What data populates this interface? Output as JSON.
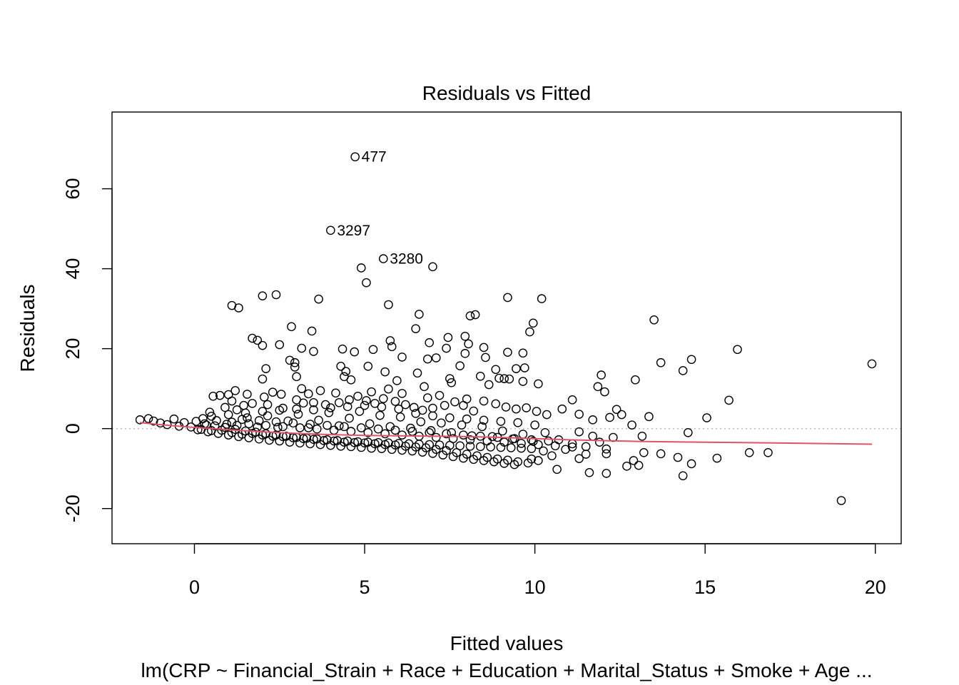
{
  "chart_data": {
    "type": "scatter",
    "title": "Residuals vs Fitted",
    "xlabel": "Fitted values",
    "ylabel": "Residuals",
    "subtitle": "lm(CRP ~ Financial_Strain + Race + Education + Marital_Status + Smoke + Age ...",
    "xlim": [
      -2.42,
      20.76
    ],
    "ylim": [
      -28.8,
      79.2
    ],
    "x_ticks": [
      0,
      5,
      10,
      15,
      20
    ],
    "y_ticks": [
      -20,
      0,
      20,
      40,
      60
    ],
    "reference_line": {
      "y": 0,
      "style": "dotted",
      "color": "#bebebe"
    },
    "smooth_color": "#df536b",
    "point_stroke": "#000000",
    "smooth": [
      [
        -1.6,
        1.5
      ],
      [
        -1.0,
        1.0
      ],
      [
        0,
        0.3
      ],
      [
        1,
        -0.3
      ],
      [
        2,
        -0.8
      ],
      [
        3,
        -1.2
      ],
      [
        4,
        -1.5
      ],
      [
        5,
        -1.7
      ],
      [
        6,
        -1.8
      ],
      [
        7,
        -1.9
      ],
      [
        8,
        -2.0
      ],
      [
        9,
        -2.2
      ],
      [
        10,
        -2.5
      ],
      [
        11,
        -2.8
      ],
      [
        12,
        -3.0
      ],
      [
        13,
        -3.2
      ],
      [
        15,
        -3.4
      ],
      [
        17,
        -3.6
      ],
      [
        19.9,
        -3.9
      ]
    ],
    "labeled_points": [
      {
        "x": 4.72,
        "y": 68.0,
        "label": "477"
      },
      {
        "x": 4.0,
        "y": 49.6,
        "label": "3297"
      },
      {
        "x": 5.55,
        "y": 42.5,
        "label": "3280"
      }
    ],
    "points": [
      [
        4.9,
        40.2
      ],
      [
        7.0,
        40.5
      ],
      [
        5.05,
        36.5
      ],
      [
        2.4,
        33.5
      ],
      [
        2.0,
        33.2
      ],
      [
        3.65,
        32.4
      ],
      [
        9.2,
        32.8
      ],
      [
        10.2,
        32.5
      ],
      [
        1.1,
        30.8
      ],
      [
        1.3,
        30.2
      ],
      [
        5.7,
        31.0
      ],
      [
        6.6,
        28.6
      ],
      [
        8.1,
        28.2
      ],
      [
        8.25,
        28.5
      ],
      [
        13.5,
        27.2
      ],
      [
        9.95,
        26.4
      ],
      [
        2.85,
        25.5
      ],
      [
        3.45,
        24.4
      ],
      [
        6.5,
        25.0
      ],
      [
        9.85,
        24.2
      ],
      [
        1.7,
        22.6
      ],
      [
        1.85,
        22.1
      ],
      [
        5.75,
        22.0
      ],
      [
        7.45,
        22.8
      ],
      [
        7.95,
        23.1
      ],
      [
        2.0,
        20.8
      ],
      [
        2.5,
        21.0
      ],
      [
        3.15,
        20.1
      ],
      [
        4.35,
        19.9
      ],
      [
        4.7,
        19.2
      ],
      [
        5.25,
        19.8
      ],
      [
        5.8,
        20.5
      ],
      [
        6.9,
        21.5
      ],
      [
        7.4,
        20.1
      ],
      [
        8.05,
        21.2
      ],
      [
        8.5,
        20.3
      ],
      [
        15.95,
        19.8
      ],
      [
        3.5,
        19.3
      ],
      [
        6.1,
        17.9
      ],
      [
        6.85,
        17.4
      ],
      [
        7.1,
        17.7
      ],
      [
        7.95,
        18.8
      ],
      [
        8.55,
        17.8
      ],
      [
        9.2,
        19.1
      ],
      [
        9.65,
        18.9
      ],
      [
        2.8,
        17.1
      ],
      [
        2.95,
        16.5
      ],
      [
        13.7,
        16.5
      ],
      [
        14.6,
        17.3
      ],
      [
        19.9,
        16.2
      ],
      [
        2.1,
        15.0
      ],
      [
        2.95,
        15.4
      ],
      [
        4.3,
        15.6
      ],
      [
        5.1,
        15.6
      ],
      [
        7.8,
        15.7
      ],
      [
        9.45,
        15.0
      ],
      [
        9.7,
        15.2
      ],
      [
        14.35,
        14.5
      ],
      [
        4.45,
        14.3
      ],
      [
        5.6,
        14.2
      ],
      [
        6.55,
        13.9
      ],
      [
        8.85,
        14.8
      ],
      [
        4.4,
        13.0
      ],
      [
        7.5,
        12.5
      ],
      [
        8.4,
        13.1
      ],
      [
        9.1,
        12.5
      ],
      [
        11.95,
        13.4
      ],
      [
        2.0,
        12.4
      ],
      [
        3.0,
        13.0
      ],
      [
        4.6,
        12.2
      ],
      [
        5.95,
        12.0
      ],
      [
        8.95,
        12.6
      ],
      [
        9.25,
        12.4
      ],
      [
        10.1,
        11.2
      ],
      [
        12.95,
        12.2
      ],
      [
        11.85,
        10.5
      ],
      [
        12.05,
        9.2
      ],
      [
        3.15,
        10.0
      ],
      [
        3.7,
        9.5
      ],
      [
        6.75,
        10.5
      ],
      [
        7.55,
        11.5
      ],
      [
        8.65,
        11.0
      ],
      [
        9.65,
        11.8
      ],
      [
        15.7,
        7.1
      ],
      [
        11.1,
        7.2
      ],
      [
        12.4,
        4.8
      ],
      [
        12.55,
        3.5
      ],
      [
        13.35,
        3.0
      ],
      [
        15.05,
        2.7
      ],
      [
        14.5,
        -1.0
      ],
      [
        12.85,
        0.9
      ],
      [
        13.15,
        -1.9
      ],
      [
        19.0,
        -18.0
      ],
      [
        14.35,
        -11.8
      ],
      [
        14.6,
        -8.8
      ],
      [
        14.2,
        -7.2
      ],
      [
        15.35,
        -7.4
      ],
      [
        16.3,
        -6.0
      ],
      [
        16.85,
        -6.0
      ],
      [
        12.1,
        -11.2
      ],
      [
        11.6,
        -11.0
      ],
      [
        10.65,
        -10.2
      ],
      [
        12.7,
        -9.4
      ],
      [
        13.05,
        -9.2
      ],
      [
        13.2,
        -6.0
      ],
      [
        12.9,
        -8.0
      ],
      [
        13.7,
        -6.3
      ],
      [
        12.1,
        -6.3
      ],
      [
        11.5,
        -6.4
      ],
      [
        9.9,
        -7.6
      ],
      [
        10.25,
        -5.6
      ],
      [
        11.3,
        -7.5
      ],
      [
        0.25,
        2.5
      ],
      [
        0.45,
        4.1
      ],
      [
        0.9,
        5.3
      ],
      [
        1.1,
        6.9
      ],
      [
        1.25,
        4.7
      ],
      [
        1.45,
        5.8
      ],
      [
        0.55,
        8.1
      ],
      [
        0.75,
        8.3
      ],
      [
        1.0,
        8.5
      ],
      [
        1.2,
        9.5
      ],
      [
        1.55,
        8.6
      ],
      [
        2.05,
        7.9
      ],
      [
        2.55,
        8.6
      ],
      [
        1.7,
        6.3
      ],
      [
        2.15,
        6.0
      ],
      [
        2.6,
        5.1
      ],
      [
        3.0,
        7.2
      ],
      [
        3.2,
        6.4
      ],
      [
        3.5,
        6.5
      ],
      [
        3.85,
        6.0
      ],
      [
        4.25,
        6.5
      ],
      [
        4.55,
        7.2
      ],
      [
        4.8,
        8.1
      ],
      [
        5.05,
        7.0
      ],
      [
        5.3,
        6.3
      ],
      [
        5.55,
        7.5
      ],
      [
        5.9,
        6.8
      ],
      [
        6.2,
        6.0
      ],
      [
        6.45,
        5.3
      ],
      [
        6.7,
        4.6
      ],
      [
        7.0,
        5.1
      ],
      [
        7.35,
        5.8
      ],
      [
        7.65,
        6.7
      ],
      [
        7.9,
        5.8
      ],
      [
        8.2,
        4.4
      ],
      [
        8.5,
        6.9
      ],
      [
        8.85,
        6.2
      ],
      [
        9.15,
        5.4
      ],
      [
        9.45,
        4.9
      ],
      [
        9.75,
        5.2
      ],
      [
        10.05,
        4.3
      ],
      [
        10.35,
        3.5
      ],
      [
        10.8,
        4.9
      ],
      [
        11.3,
        3.6
      ],
      [
        11.7,
        2.2
      ],
      [
        12.2,
        2.8
      ],
      [
        2.3,
        9.1
      ],
      [
        3.35,
        8.7
      ],
      [
        4.15,
        8.9
      ],
      [
        5.2,
        9.2
      ],
      [
        5.7,
        9.9
      ],
      [
        6.1,
        8.8
      ],
      [
        6.85,
        7.7
      ],
      [
        7.2,
        8.3
      ],
      [
        8.0,
        7.4
      ],
      [
        -1.6,
        2.2
      ],
      [
        -1.35,
        2.5
      ],
      [
        -1.2,
        1.9
      ],
      [
        -1.0,
        1.4
      ],
      [
        -0.8,
        1.0
      ],
      [
        -0.6,
        2.4
      ],
      [
        -0.45,
        0.6
      ],
      [
        -0.3,
        1.5
      ],
      [
        -0.1,
        0.4
      ],
      [
        0.05,
        1.8
      ],
      [
        0.2,
        -0.2
      ],
      [
        0.35,
        0.9
      ],
      [
        0.5,
        -0.5
      ],
      [
        0.65,
        2.0
      ],
      [
        0.8,
        -0.4
      ],
      [
        0.95,
        1.1
      ],
      [
        1.1,
        -1.0
      ],
      [
        1.25,
        0.8
      ],
      [
        1.4,
        -1.4
      ],
      [
        1.55,
        2.7
      ],
      [
        1.7,
        -1.2
      ],
      [
        1.85,
        0.4
      ],
      [
        2.0,
        -1.6
      ],
      [
        2.15,
        3.2
      ],
      [
        2.3,
        -1.9
      ],
      [
        2.45,
        0.3
      ],
      [
        2.6,
        -2.0
      ],
      [
        2.75,
        1.9
      ],
      [
        2.9,
        -2.3
      ],
      [
        3.05,
        3.6
      ],
      [
        3.2,
        -2.5
      ],
      [
        3.35,
        0.2
      ],
      [
        3.5,
        -2.7
      ],
      [
        3.65,
        2.1
      ],
      [
        3.8,
        -3.0
      ],
      [
        3.95,
        4.0
      ],
      [
        4.1,
        -3.1
      ],
      [
        4.25,
        0.7
      ],
      [
        4.4,
        -3.4
      ],
      [
        4.55,
        2.6
      ],
      [
        4.7,
        -3.5
      ],
      [
        4.85,
        4.3
      ],
      [
        5.0,
        -3.6
      ],
      [
        5.15,
        1.2
      ],
      [
        5.3,
        -3.8
      ],
      [
        5.45,
        3.3
      ],
      [
        5.6,
        -4.0
      ],
      [
        5.75,
        0.5
      ],
      [
        5.9,
        -4.1
      ],
      [
        6.05,
        2.9
      ],
      [
        6.2,
        -4.4
      ],
      [
        6.35,
        0.1
      ],
      [
        6.5,
        -4.6
      ],
      [
        6.65,
        1.7
      ],
      [
        6.8,
        -4.8
      ],
      [
        6.95,
        -0.5
      ],
      [
        7.1,
        -5.2
      ],
      [
        7.25,
        1.4
      ],
      [
        7.4,
        -5.5
      ],
      [
        7.55,
        -1.0
      ],
      [
        7.7,
        -6.0
      ],
      [
        7.85,
        0.9
      ],
      [
        8.0,
        -6.4
      ],
      [
        8.15,
        -1.8
      ],
      [
        8.3,
        -6.8
      ],
      [
        8.45,
        0.5
      ],
      [
        8.6,
        -7.2
      ],
      [
        8.75,
        -2.0
      ],
      [
        8.9,
        -7.6
      ],
      [
        9.05,
        -0.6
      ],
      [
        9.2,
        -7.9
      ],
      [
        9.35,
        -2.6
      ],
      [
        9.5,
        -8.3
      ],
      [
        9.65,
        -1.4
      ],
      [
        9.8,
        -8.6
      ],
      [
        9.95,
        -3.2
      ],
      [
        10.1,
        -8.0
      ],
      [
        10.3,
        -1.0
      ],
      [
        10.5,
        -6.8
      ],
      [
        10.7,
        -2.8
      ],
      [
        10.9,
        -5.2
      ],
      [
        11.1,
        -3.8
      ],
      [
        11.3,
        -0.8
      ],
      [
        11.5,
        -4.5
      ],
      [
        11.7,
        -1.9
      ],
      [
        11.9,
        -3.4
      ],
      [
        12.1,
        -5.1
      ],
      [
        12.3,
        -2.2
      ],
      [
        0.1,
        -0.3
      ],
      [
        0.4,
        -0.8
      ],
      [
        0.7,
        -1.2
      ],
      [
        1.0,
        -1.6
      ],
      [
        1.3,
        -2.0
      ],
      [
        1.6,
        -2.3
      ],
      [
        1.9,
        -2.6
      ],
      [
        2.2,
        -2.9
      ],
      [
        2.5,
        -3.1
      ],
      [
        2.8,
        -3.4
      ],
      [
        3.1,
        -3.6
      ],
      [
        3.4,
        -3.8
      ],
      [
        3.7,
        -4.0
      ],
      [
        4.0,
        -4.2
      ],
      [
        4.3,
        -4.4
      ],
      [
        4.6,
        -4.5
      ],
      [
        4.9,
        -4.7
      ],
      [
        5.2,
        -4.9
      ],
      [
        5.5,
        -5.0
      ],
      [
        5.8,
        -5.2
      ],
      [
        6.1,
        -5.4
      ],
      [
        6.4,
        -5.6
      ],
      [
        6.7,
        -5.9
      ],
      [
        7.0,
        -6.2
      ],
      [
        7.3,
        -6.6
      ],
      [
        7.6,
        -7.0
      ],
      [
        7.9,
        -7.4
      ],
      [
        8.2,
        -7.7
      ],
      [
        8.5,
        -8.0
      ],
      [
        8.8,
        -8.3
      ],
      [
        9.1,
        -8.7
      ],
      [
        9.4,
        -9.0
      ],
      [
        0.3,
        1.2
      ],
      [
        0.6,
        0.7
      ],
      [
        0.9,
        0.3
      ],
      [
        1.2,
        -0.2
      ],
      [
        1.5,
        -0.6
      ],
      [
        1.8,
        -0.9
      ],
      [
        2.1,
        -1.3
      ],
      [
        2.4,
        -1.6
      ],
      [
        2.7,
        -1.9
      ],
      [
        3.0,
        -2.2
      ],
      [
        3.3,
        -2.4
      ],
      [
        3.6,
        -2.6
      ],
      [
        3.9,
        -2.8
      ],
      [
        4.2,
        -3.0
      ],
      [
        4.5,
        -3.1
      ],
      [
        4.8,
        -3.3
      ],
      [
        5.1,
        -3.4
      ],
      [
        5.4,
        -3.5
      ],
      [
        5.7,
        -3.6
      ],
      [
        6.0,
        -3.7
      ],
      [
        6.3,
        -3.8
      ],
      [
        6.6,
        -3.9
      ],
      [
        6.9,
        -4.0
      ],
      [
        7.2,
        -4.1
      ],
      [
        7.5,
        -4.2
      ],
      [
        7.8,
        -4.3
      ],
      [
        8.1,
        -4.4
      ],
      [
        8.4,
        -4.5
      ],
      [
        8.7,
        -4.6
      ],
      [
        9.0,
        -4.7
      ],
      [
        9.3,
        -4.8
      ],
      [
        9.6,
        -4.9
      ],
      [
        9.9,
        -5.0
      ],
      [
        0.5,
        3.1
      ],
      [
        1.0,
        3.5
      ],
      [
        1.5,
        3.9
      ],
      [
        2.0,
        4.3
      ],
      [
        2.5,
        4.6
      ],
      [
        3.0,
        4.9
      ],
      [
        3.5,
        4.7
      ],
      [
        4.0,
        5.2
      ],
      [
        4.5,
        5.5
      ],
      [
        5.0,
        5.8
      ],
      [
        5.5,
        5.4
      ],
      [
        6.0,
        4.9
      ],
      [
        6.5,
        3.8
      ],
      [
        7.0,
        3.2
      ],
      [
        7.5,
        2.7
      ],
      [
        8.0,
        2.4
      ],
      [
        8.5,
        2.1
      ],
      [
        9.0,
        1.8
      ],
      [
        9.5,
        1.5
      ],
      [
        10.0,
        0.9
      ],
      [
        1.1,
        1.6
      ],
      [
        1.6,
        1.2
      ],
      [
        2.1,
        0.8
      ],
      [
        2.6,
        0.5
      ],
      [
        3.1,
        0.2
      ],
      [
        3.6,
        -0.1
      ],
      [
        4.1,
        -0.4
      ],
      [
        4.6,
        -0.7
      ],
      [
        5.1,
        -1.0
      ],
      [
        5.6,
        -1.3
      ],
      [
        6.1,
        -1.6
      ],
      [
        6.6,
        -1.9
      ],
      [
        7.1,
        -2.2
      ],
      [
        7.6,
        -2.5
      ],
      [
        8.1,
        -2.8
      ],
      [
        8.6,
        -3.1
      ],
      [
        9.1,
        -3.4
      ],
      [
        9.6,
        -3.7
      ],
      [
        10.1,
        -4.0
      ],
      [
        10.6,
        -4.3
      ],
      [
        11.1,
        -4.6
      ],
      [
        1.4,
        2.3
      ],
      [
        1.9,
        2.0
      ],
      [
        2.4,
        1.7
      ],
      [
        2.9,
        1.4
      ],
      [
        3.4,
        1.1
      ],
      [
        3.9,
        0.8
      ],
      [
        4.4,
        0.5
      ],
      [
        4.9,
        0.2
      ],
      [
        5.4,
        -0.1
      ],
      [
        5.9,
        -0.4
      ],
      [
        6.4,
        -0.7
      ],
      [
        6.9,
        -1.0
      ],
      [
        7.4,
        -1.3
      ],
      [
        7.9,
        -1.6
      ],
      [
        8.4,
        -1.9
      ],
      [
        8.9,
        -2.2
      ],
      [
        9.4,
        -2.5
      ],
      [
        9.9,
        -2.8
      ],
      [
        10.4,
        -3.1
      ]
    ]
  }
}
